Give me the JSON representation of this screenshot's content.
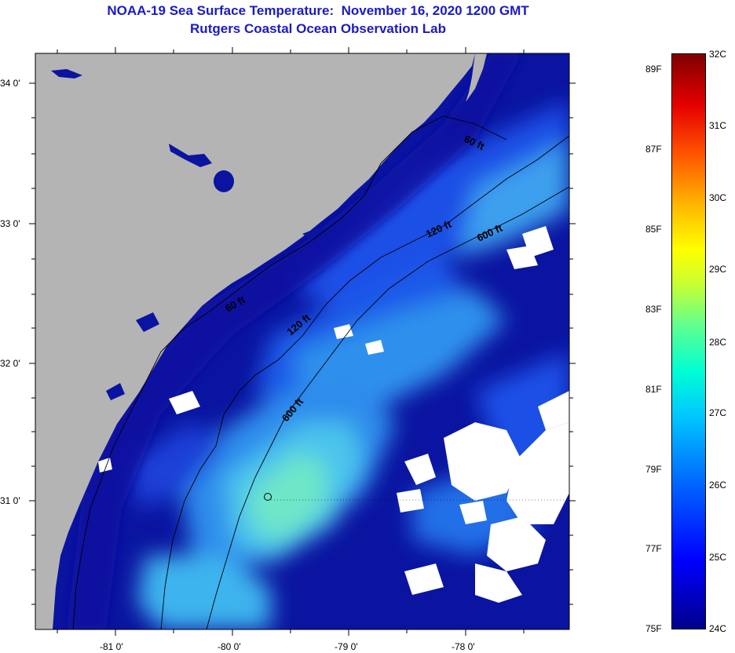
{
  "title": {
    "line1": "NOAA-19 Sea Surface Temperature:  November 16, 2020 1200 GMT",
    "line2": "Rutgers Coastal Ocean Observation Lab"
  },
  "map": {
    "lat_labels": [
      "34 0'",
      "33 0'",
      "32 0'",
      "31 0'"
    ],
    "lon_labels": [
      "-81 0'",
      "-80 0'",
      "-79 0'",
      "-78 0'"
    ],
    "contour_labels": [
      "60 ft",
      "120 ft",
      "600 ft",
      "60 ft",
      "120 ft",
      "600 ft"
    ],
    "colors": {
      "land": "#b4b4b4",
      "cloud": "#ffffff",
      "ocean_cold": "#0a14a0",
      "ocean_mid": "#1e50e6",
      "ocean_warm": "#3cb4f0",
      "ocean_warmest": "#6ee6c8"
    }
  },
  "colorbar": {
    "celsius_labels": [
      "32C",
      "31C",
      "30C",
      "29C",
      "28C",
      "27C",
      "26C",
      "25C",
      "24C"
    ],
    "fahrenheit_labels": [
      "89F",
      "87F",
      "85F",
      "83F",
      "81F",
      "79F",
      "77F",
      "75F"
    ],
    "min_c": 24,
    "max_c": 32
  }
}
